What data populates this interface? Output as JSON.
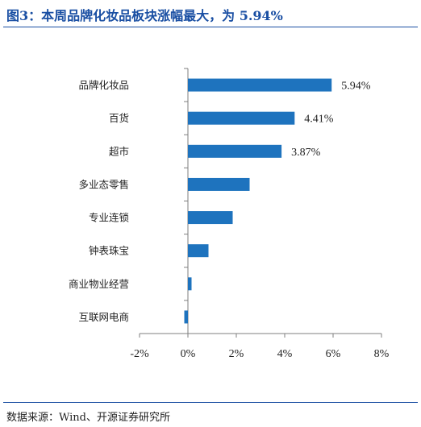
{
  "title": "图3：本周品牌化妆品板块涨幅最大，为 5.94%",
  "source": "数据来源：Wind、开源证券研究所",
  "colors": {
    "bar": "#1e73be",
    "title": "#1a4fa3",
    "axis": "#7f7f7f"
  },
  "chart_data": {
    "type": "bar",
    "orientation": "horizontal",
    "title": "",
    "xlabel": "",
    "ylabel": "",
    "categories": [
      "品牌化妆品",
      "百货",
      "超市",
      "多业态零售",
      "专业连锁",
      "钟表珠宝",
      "商业物业经营",
      "互联网电商"
    ],
    "values": [
      5.94,
      4.41,
      3.87,
      2.55,
      1.85,
      0.85,
      0.15,
      -0.15
    ],
    "data_labels": [
      "5.94%",
      "4.41%",
      "3.87%",
      "",
      "",
      "",
      "",
      ""
    ],
    "xlim": [
      -2,
      8
    ],
    "xticks": [
      -2,
      0,
      2,
      4,
      6,
      8
    ],
    "xtick_labels": [
      "-2%",
      "0%",
      "2%",
      "4%",
      "6%",
      "8%"
    ],
    "grid": false,
    "legend": "none"
  }
}
